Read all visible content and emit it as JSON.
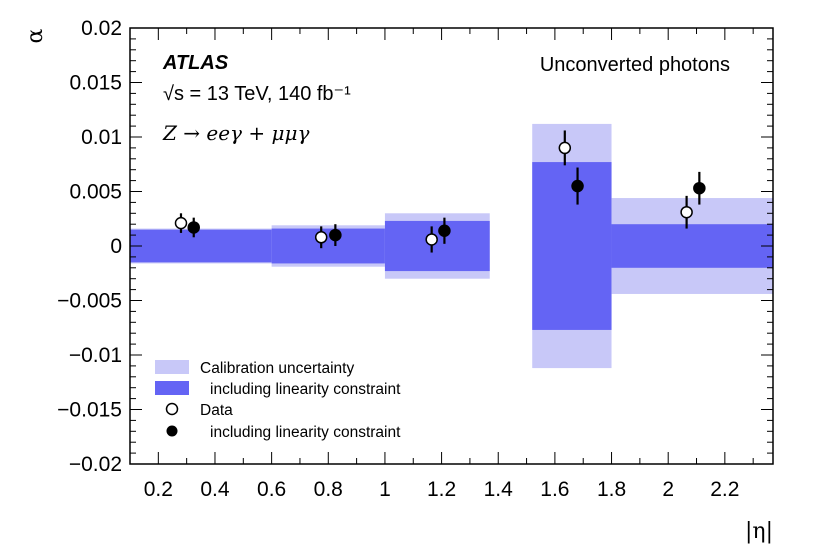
{
  "chart_data": {
    "type": "scatter",
    "title": "Unconverted photons",
    "xlabel": "|η|",
    "ylabel": "α",
    "xlim": [
      0.1,
      2.37
    ],
    "ylim": [
      -0.02,
      0.02
    ],
    "x_ticks": [
      0.2,
      0.4,
      0.6,
      0.8,
      1.0,
      1.2,
      1.4,
      1.6,
      1.8,
      2.0,
      2.2
    ],
    "x_tick_labels": [
      "0.2",
      "0.4",
      "0.6",
      "0.8",
      "1",
      "1.2",
      "1.4",
      "1.6",
      "1.8",
      "2",
      "2.2"
    ],
    "y_ticks": [
      -0.02,
      -0.015,
      -0.01,
      -0.005,
      0,
      0.005,
      0.01,
      0.015,
      0.02
    ],
    "y_tick_labels": [
      "−0.02",
      "−0.015",
      "−0.01",
      "−0.005",
      "0",
      "0.005",
      "0.01",
      "0.015",
      "0.02"
    ],
    "experiment": "ATLAS",
    "energy_label": "√s = 13 TeV, 140 fb⁻¹",
    "process_label": "Z → eeγ + μμγ",
    "bins": [
      {
        "x_low": 0.1,
        "x_high": 0.6,
        "calib_unc": 0.0016,
        "linearity_unc": 0.0015
      },
      {
        "x_low": 0.6,
        "x_high": 1.0,
        "calib_unc": 0.0019,
        "linearity_unc": 0.0016
      },
      {
        "x_low": 1.0,
        "x_high": 1.37,
        "calib_unc": 0.003,
        "linearity_unc": 0.0023
      },
      {
        "x_low": 1.52,
        "x_high": 1.8,
        "calib_unc": 0.0112,
        "linearity_unc": 0.0077
      },
      {
        "x_low": 1.8,
        "x_high": 2.37,
        "calib_unc": 0.0044,
        "linearity_unc": 0.002
      }
    ],
    "series": [
      {
        "name": "Data",
        "marker": "open-circle",
        "points": [
          {
            "x": 0.28,
            "y": 0.0021,
            "err": 0.0009
          },
          {
            "x": 0.775,
            "y": 0.0008,
            "err": 0.001
          },
          {
            "x": 1.165,
            "y": 0.0006,
            "err": 0.0012
          },
          {
            "x": 1.635,
            "y": 0.009,
            "err": 0.0016
          },
          {
            "x": 2.065,
            "y": 0.0031,
            "err": 0.0015
          }
        ]
      },
      {
        "name": "including linearity constraint",
        "marker": "filled-circle",
        "points": [
          {
            "x": 0.325,
            "y": 0.0017,
            "err": 0.0009
          },
          {
            "x": 0.825,
            "y": 0.001,
            "err": 0.001
          },
          {
            "x": 1.21,
            "y": 0.0014,
            "err": 0.0012
          },
          {
            "x": 1.68,
            "y": 0.0055,
            "err": 0.0017
          },
          {
            "x": 2.11,
            "y": 0.0053,
            "err": 0.0015
          }
        ]
      }
    ],
    "legend": [
      {
        "label": "Calibration uncertainty",
        "kind": "band-light"
      },
      {
        "label": "including linearity constraint",
        "kind": "band-dark"
      },
      {
        "label": "Data",
        "kind": "open-circle"
      },
      {
        "label": "including linearity constraint",
        "kind": "filled-circle"
      }
    ],
    "colors": {
      "band_light": "#c8c8f8",
      "band_dark": "#6464f4",
      "marker": "#000000"
    }
  }
}
